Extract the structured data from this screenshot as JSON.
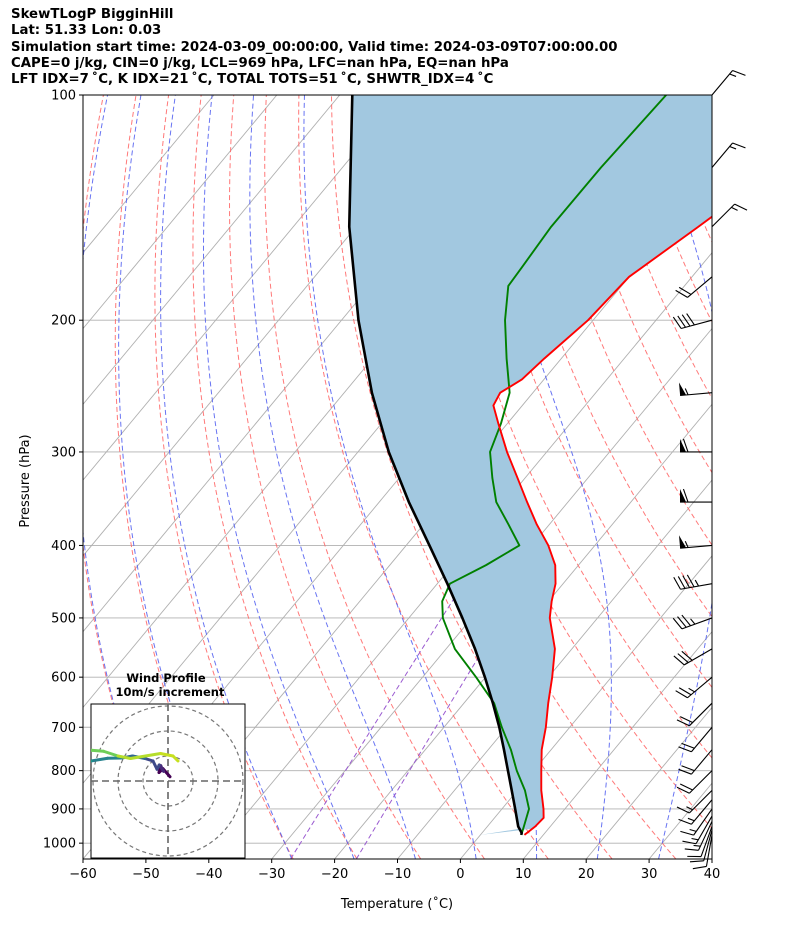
{
  "header": {
    "line1": "SkewTLogP BigginHill",
    "line2": "Lat: 51.33   Lon: 0.03",
    "line3": "Simulation start time: 2024-03-09_00:00:00, Valid time: 2024-03-09T07:00:00.00",
    "line4": "CAPE=0 j/kg, CIN=0 j/kg, LCL=969 hPa, LFC=nan hPa, EQ=nan hPa",
    "line5": "LFT IDX=7 ˚C, K IDX=21 ˚C, TOTAL TOTS=51 ˚C, SHWTR_IDX=4 ˚C"
  },
  "chart_data": {
    "type": "skew-t log-p",
    "xlabel": "Temperature (˚C)",
    "ylabel": "Pressure (hPa)",
    "xlim": [
      -60,
      40
    ],
    "ylim": [
      1050,
      100
    ],
    "x_ticks": [
      -60,
      -50,
      -40,
      -30,
      -20,
      -10,
      0,
      10,
      20,
      30,
      40
    ],
    "x_tick_labels": [
      "−60",
      "−50",
      "−40",
      "−30",
      "−20",
      "−10",
      "0",
      "10",
      "20",
      "30",
      "40"
    ],
    "y_ticks": [
      100,
      200,
      300,
      400,
      500,
      600,
      700,
      800,
      900,
      1000
    ],
    "y_scale": "log",
    "grid": true,
    "colors": {
      "temperature": "#ff0000",
      "dewpoint": "#008000",
      "parcel": "#000000",
      "cape_fill": "#a2c8e0",
      "dry_adiabat": "#ff6a6a",
      "moist_adiabat": "#4d5cf0",
      "mixing_ratio": "#9a5ad0",
      "isotherm": "#b0b0b0"
    },
    "temperature": {
      "pressure": [
        975,
        950,
        925,
        900,
        850,
        800,
        750,
        700,
        650,
        600,
        550,
        500,
        475,
        450,
        425,
        400,
        375,
        350,
        325,
        300,
        275,
        260,
        250,
        240,
        225,
        200,
        175,
        150,
        125,
        100
      ],
      "value": [
        7.0,
        7.6,
        7.8,
        6.6,
        3.8,
        1.2,
        -1.5,
        -3.8,
        -6.6,
        -9.4,
        -12.7,
        -17.6,
        -19.5,
        -21.2,
        -23.7,
        -27.4,
        -32.0,
        -36.5,
        -41.2,
        -46.3,
        -51.4,
        -54.6,
        -55.2,
        -53.5,
        -52.7,
        -50.8,
        -50.0,
        -45.6,
        -40.6,
        -36.2
      ]
    },
    "dewpoint": {
      "pressure": [
        975,
        950,
        900,
        850,
        800,
        750,
        700,
        650,
        600,
        550,
        500,
        475,
        450,
        425,
        400,
        375,
        350,
        325,
        300,
        275,
        250,
        225,
        200,
        180,
        170,
        150,
        125,
        100
      ],
      "value": [
        6.5,
        5.8,
        4.3,
        1.2,
        -2.7,
        -6.4,
        -10.8,
        -15.2,
        -21.5,
        -28.6,
        -34.6,
        -36.9,
        -38.0,
        -34.7,
        -32.0,
        -36.5,
        -41.4,
        -45.2,
        -49.0,
        -51.0,
        -53.7,
        -58.7,
        -64.0,
        -68.0,
        -68.3,
        -69.0,
        -68.9,
        -68.1
      ]
    },
    "parcel": {
      "pressure": [
        975,
        969,
        950,
        900,
        850,
        800,
        750,
        700,
        650,
        600,
        550,
        500,
        450,
        400,
        350,
        300,
        250,
        200,
        150,
        100
      ],
      "value": [
        6.5,
        6.3,
        4.9,
        2.1,
        -0.9,
        -4.1,
        -7.5,
        -11.2,
        -15.4,
        -20.1,
        -25.4,
        -31.5,
        -38.4,
        -46.3,
        -55.3,
        -65.1,
        -75.6,
        -87.3,
        -101.1,
        -118.0
      ]
    },
    "isotherms": [
      -140,
      -130,
      -120,
      -110,
      -100,
      -90,
      -80,
      -70,
      -60,
      -50,
      -40,
      -30,
      -20,
      -10,
      0,
      10,
      20,
      30,
      40
    ],
    "dry_adiabats_theta_c": [
      -50,
      -40,
      -30,
      -20,
      -10,
      0,
      10,
      20,
      30,
      40,
      50,
      60,
      70,
      80,
      90,
      100,
      110,
      120
    ],
    "moist_adiabats_start_c": [
      -50,
      -40,
      -30,
      -20,
      -10,
      0,
      10,
      20,
      30,
      40
    ],
    "mixing_ratio_lines_gkg": [
      0.4,
      1.0
    ],
    "wind_barbs": {
      "pressure": [
        975,
        960,
        950,
        935,
        920,
        900,
        875,
        850,
        800,
        750,
        700,
        650,
        600,
        550,
        500,
        450,
        400,
        350,
        300,
        250,
        200,
        175,
        150,
        125,
        100
      ],
      "speed_kt": [
        10,
        10,
        10,
        15,
        15,
        15,
        15,
        15,
        20,
        20,
        20,
        20,
        25,
        30,
        35,
        45,
        55,
        60,
        60,
        55,
        40,
        20,
        15,
        15,
        15
      ],
      "direction_deg": [
        190,
        195,
        200,
        205,
        210,
        215,
        220,
        225,
        225,
        220,
        220,
        225,
        230,
        240,
        250,
        260,
        265,
        270,
        270,
        265,
        255,
        230,
        45,
        40,
        40
      ]
    },
    "hodograph": {
      "title": "Wind Profile",
      "subtitle": "10m/s increment",
      "rings_ms": [
        10,
        20,
        30
      ],
      "u_ms": [
        0.8,
        -2.0,
        -3.6,
        -2.9,
        -1.8,
        -3.5,
        -4.4,
        -6.0,
        -9.2,
        -14.2,
        -18.4,
        -24.1,
        -30.9,
        -35.8,
        -36.8,
        -37.4,
        -36.7,
        -35.9,
        -30.7,
        -25.8,
        -20.0,
        -15.0,
        -3.0,
        2.0,
        4.0
      ],
      "v_ms": [
        1.7,
        4.9,
        3.4,
        6.1,
        3.9,
        6.4,
        4.7,
        8.0,
        9.0,
        10.0,
        9.2,
        9.1,
        8.0,
        6.2,
        4.8,
        10.0,
        11.1,
        12.0,
        12.3,
        11.9,
        10.0,
        9.0,
        11.0,
        10.0,
        8.0
      ]
    }
  }
}
